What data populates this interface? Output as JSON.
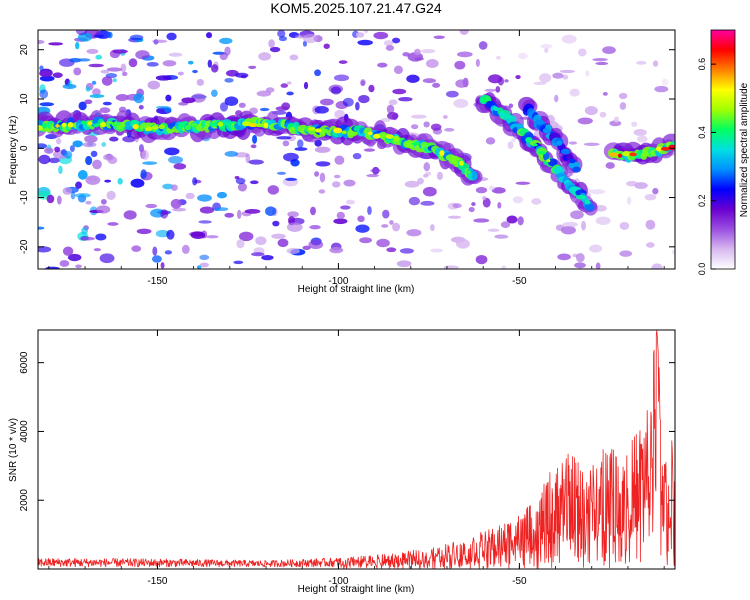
{
  "title": "KOM5.2025.107.21.47.G24",
  "chart_data": [
    {
      "type": "heatmap",
      "xlabel": "Height of straight line (km)",
      "ylabel": "Frequency (Hz)",
      "xlim": [
        -183,
        -7
      ],
      "ylim": [
        -24.5,
        24
      ],
      "x_ticks": [
        -150,
        -100,
        -50
      ],
      "y_ticks": [
        20,
        10,
        0,
        -10,
        -20
      ],
      "colorbar": {
        "label": "Normalized spectral amplitude",
        "range": [
          0,
          0.7
        ],
        "ticks": [
          0.0,
          0.2,
          0.4,
          0.6
        ],
        "colors": [
          "#ffffff",
          "#d8b8f0",
          "#9a4fe0",
          "#6a00d0",
          "#0000ff",
          "#0090ff",
          "#00e0e0",
          "#00ff60",
          "#a0ff00",
          "#ffff00",
          "#ff8000",
          "#ff0000",
          "#ff00a0"
        ]
      },
      "ridges": [
        {
          "x": [
            -183,
            -165,
            -150,
            -135,
            -120,
            -105,
            -95,
            -85,
            -75,
            -68,
            -62
          ],
          "y": [
            4.5,
            5,
            4,
            4.5,
            5,
            3.5,
            3.5,
            2,
            0,
            -2,
            -6
          ],
          "peak": 0.55
        },
        {
          "x": [
            -60,
            -55,
            -50,
            -45,
            -40,
            -35,
            -30
          ],
          "y": [
            10,
            7,
            4,
            0,
            -4,
            -8,
            -12
          ],
          "peak": 0.5
        },
        {
          "x": [
            -48,
            -44,
            -40,
            -37,
            -34
          ],
          "y": [
            8,
            5,
            2,
            -1,
            -4
          ],
          "peak": 0.35
        },
        {
          "x": [
            -24,
            -18,
            -12,
            -7
          ],
          "y": [
            -1,
            -1.5,
            -0.5,
            0.5
          ],
          "peak": 0.68
        }
      ]
    },
    {
      "type": "line",
      "xlabel": "Height of straight line (km)",
      "ylabel": "SNR (10 * v/v)",
      "xlim": [
        -183,
        -7
      ],
      "ylim": [
        0,
        6950
      ],
      "x_ticks": [
        -150,
        -100,
        -50
      ],
      "y_ticks": [
        2000,
        4000,
        6000
      ],
      "series": [
        {
          "color": "#ee2222",
          "envelope": {
            "x": [
              -183,
              -150,
              -120,
              -100,
              -85,
              -75,
              -65,
              -55,
              -45,
              -40,
              -35,
              -30,
              -25,
              -20,
              -15,
              -12,
              -10,
              -8,
              -7
            ],
            "y": [
              320,
              300,
              250,
              330,
              450,
              620,
              900,
              1300,
              2000,
              3300,
              3400,
              3000,
              3900,
              3500,
              4700,
              6950,
              3300,
              3900,
              4000
            ]
          }
        }
      ]
    }
  ]
}
